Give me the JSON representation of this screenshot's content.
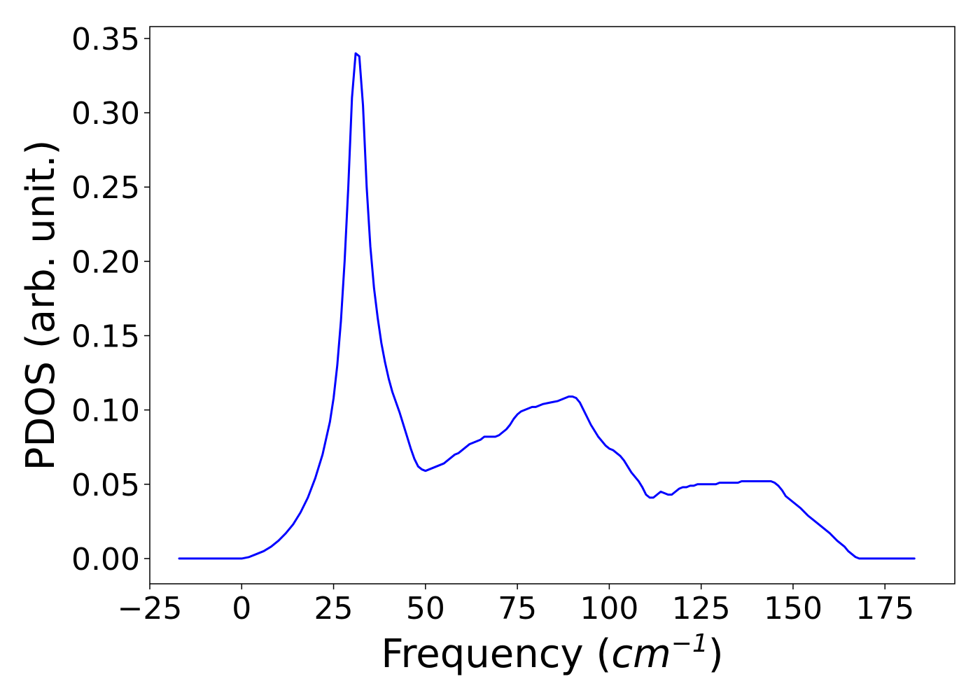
{
  "chart_data": {
    "type": "line",
    "title": "",
    "xlabel": "Frequency (",
    "xlabel_math": "cm",
    "xlabel_sup": "−1",
    "xlabel_close": ")",
    "ylabel": "PDOS (arb. unit.)",
    "xlim": [
      -25,
      194
    ],
    "ylim": [
      -0.017,
      0.358
    ],
    "xticks": [
      -25,
      0,
      25,
      50,
      75,
      100,
      125,
      150,
      175
    ],
    "xtick_labels": [
      "−25",
      "0",
      "25",
      "50",
      "75",
      "100",
      "125",
      "150",
      "175"
    ],
    "yticks": [
      0.0,
      0.05,
      0.1,
      0.15,
      0.2,
      0.25,
      0.3,
      0.35
    ],
    "ytick_labels": [
      "0.00",
      "0.05",
      "0.10",
      "0.15",
      "0.20",
      "0.25",
      "0.30",
      "0.35"
    ],
    "grid": false,
    "legend": "none",
    "series": [
      {
        "color": "#0000ff",
        "x": [
          -17,
          -10,
          -5,
          0,
          2,
          4,
          6,
          8,
          10,
          12,
          14,
          16,
          18,
          20,
          22,
          24,
          25,
          26,
          27,
          28,
          29,
          30,
          31,
          32,
          33,
          34,
          35,
          36,
          37,
          38,
          39,
          40,
          41,
          42,
          43,
          44,
          45,
          46,
          47,
          48,
          49,
          50,
          51,
          52,
          53,
          54,
          55,
          56,
          57,
          58,
          59,
          60,
          61,
          62,
          63,
          64,
          65,
          66,
          67,
          68,
          69,
          70,
          71,
          72,
          73,
          74,
          75,
          76,
          77,
          78,
          79,
          80,
          82,
          84,
          86,
          88,
          89,
          90,
          91,
          92,
          93,
          94,
          95,
          96,
          97,
          98,
          99,
          100,
          101,
          102,
          103,
          104,
          105,
          106,
          107,
          108,
          109,
          110,
          111,
          112,
          113,
          114,
          115,
          116,
          117,
          118,
          119,
          120,
          121,
          122,
          123,
          124,
          125,
          126,
          127,
          128,
          129,
          130,
          131,
          132,
          133,
          134,
          135,
          136,
          137,
          138,
          139,
          140,
          141,
          142,
          143,
          144,
          145,
          146,
          147,
          148,
          150,
          152,
          154,
          156,
          158,
          160,
          162,
          163,
          164,
          165,
          166,
          167,
          168,
          169,
          170,
          172,
          175,
          178,
          183
        ],
        "y": [
          0,
          0,
          0,
          0,
          0.001,
          0.003,
          0.005,
          0.008,
          0.012,
          0.017,
          0.023,
          0.031,
          0.041,
          0.054,
          0.07,
          0.092,
          0.108,
          0.13,
          0.16,
          0.2,
          0.25,
          0.31,
          0.34,
          0.338,
          0.305,
          0.25,
          0.21,
          0.182,
          0.162,
          0.145,
          0.132,
          0.121,
          0.112,
          0.105,
          0.098,
          0.09,
          0.082,
          0.074,
          0.067,
          0.062,
          0.06,
          0.059,
          0.06,
          0.061,
          0.062,
          0.063,
          0.064,
          0.066,
          0.068,
          0.07,
          0.071,
          0.073,
          0.075,
          0.077,
          0.078,
          0.079,
          0.08,
          0.082,
          0.082,
          0.082,
          0.082,
          0.083,
          0.085,
          0.087,
          0.09,
          0.094,
          0.097,
          0.099,
          0.1,
          0.101,
          0.102,
          0.102,
          0.104,
          0.105,
          0.106,
          0.108,
          0.109,
          0.109,
          0.108,
          0.105,
          0.1,
          0.095,
          0.09,
          0.086,
          0.082,
          0.079,
          0.076,
          0.074,
          0.073,
          0.071,
          0.069,
          0.066,
          0.062,
          0.058,
          0.055,
          0.052,
          0.048,
          0.043,
          0.041,
          0.041,
          0.043,
          0.045,
          0.044,
          0.043,
          0.043,
          0.045,
          0.047,
          0.048,
          0.048,
          0.049,
          0.049,
          0.05,
          0.05,
          0.05,
          0.05,
          0.05,
          0.05,
          0.051,
          0.051,
          0.051,
          0.051,
          0.051,
          0.051,
          0.052,
          0.052,
          0.052,
          0.052,
          0.052,
          0.052,
          0.052,
          0.052,
          0.052,
          0.051,
          0.049,
          0.046,
          0.042,
          0.038,
          0.034,
          0.029,
          0.025,
          0.021,
          0.017,
          0.012,
          0.01,
          0.008,
          0.005,
          0.003,
          0.001,
          0,
          0,
          0,
          0,
          0,
          0,
          0
        ]
      }
    ]
  }
}
